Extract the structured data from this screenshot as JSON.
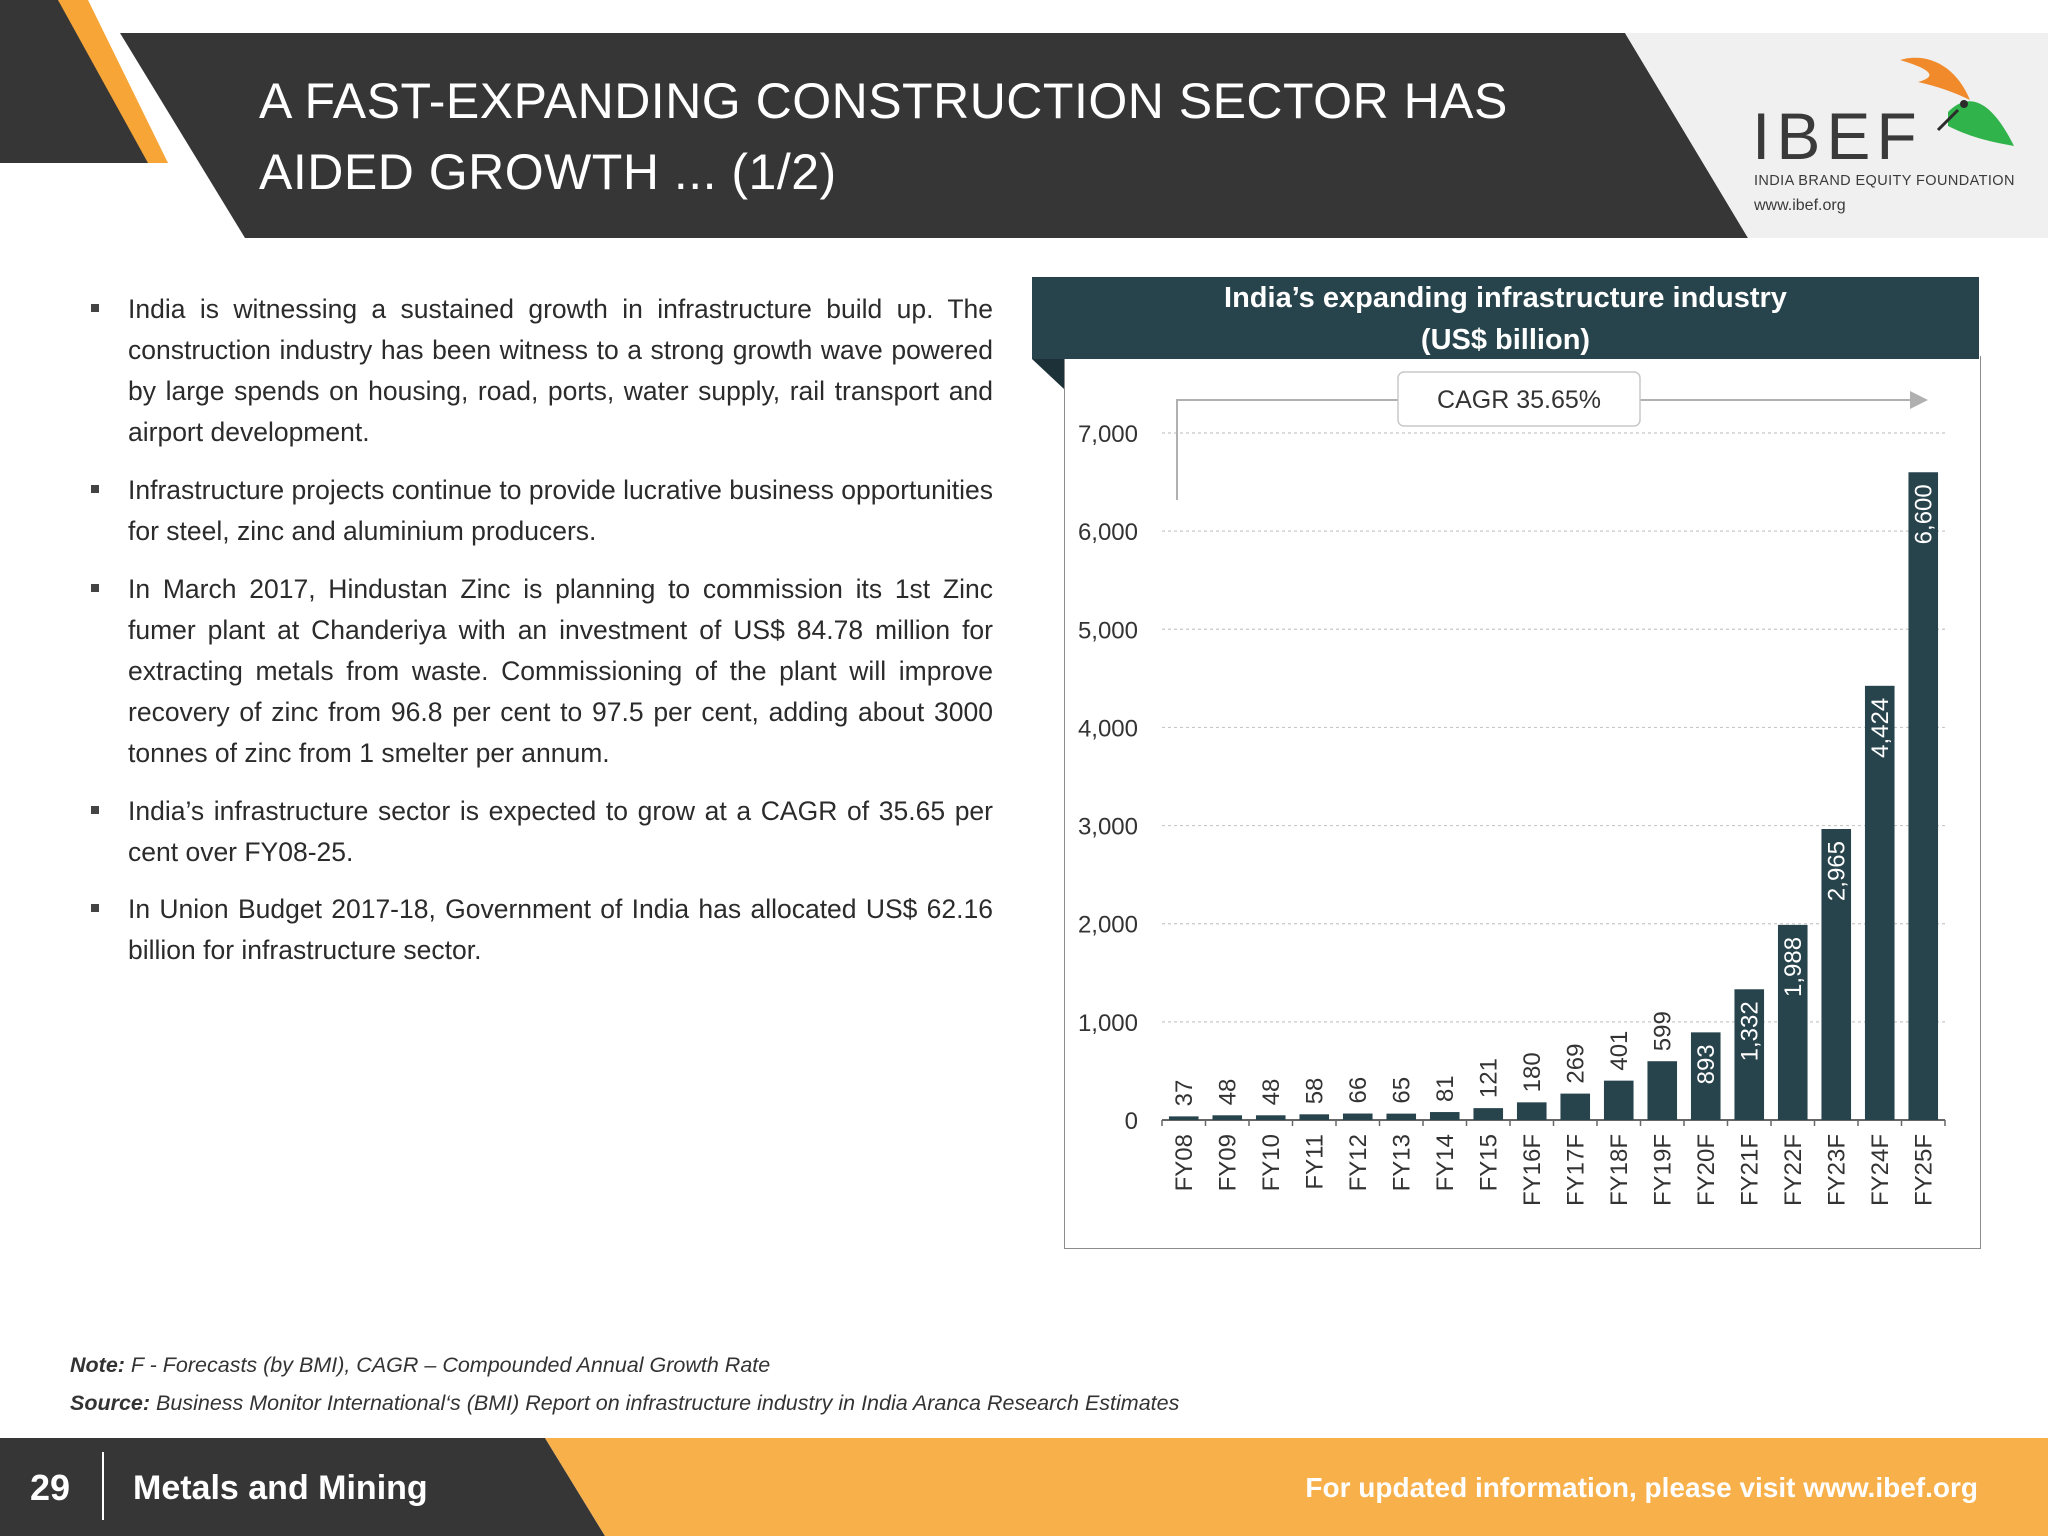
{
  "header": {
    "title_line1": "A FAST-EXPANDING CONSTRUCTION SECTOR HAS",
    "title_line2": "AIDED GROWTH ... (1/2)",
    "logo_text": "IBEF",
    "logo_subtitle": "INDIA BRAND EQUITY FOUNDATION",
    "logo_url": "www.ibef.org",
    "logo_icon": "bird-icon",
    "colors": {
      "dark": "#363636",
      "accent": "#f7a536",
      "logo_panel": "#f0f0f0"
    }
  },
  "bullets": [
    "India is witnessing a sustained growth in infrastructure build up. The construction industry has been witness to a strong growth wave powered by large spends on housing, road, ports, water supply, rail transport and airport development.",
    "Infrastructure projects continue to provide lucrative business opportunities for steel, zinc and aluminium producers.",
    "In March 2017, Hindustan Zinc is planning to commission its 1st Zinc fumer plant at Chanderiya with an investment of US$ 84.78 million for extracting metals from waste. Commissioning of the plant will improve recovery of zinc from 96.8 per cent to 97.5 per cent, adding about 3000 tonnes of zinc from 1 smelter per annum.",
    "India’s infrastructure sector is expected to grow at a CAGR of 35.65 per cent over FY08-25.",
    "In Union Budget 2017-18, Government of India has allocated US$ 62.16 billion for infrastructure sector."
  ],
  "chart_data": {
    "type": "bar",
    "title_line1": "India’s expanding infrastructure industry",
    "title_line2": "(US$ billion)",
    "annotation": "CAGR 35.65%",
    "categories": [
      "FY08",
      "FY09",
      "FY10",
      "FY11",
      "FY12",
      "FY13",
      "FY14",
      "FY15",
      "FY16F",
      "FY17F",
      "FY18F",
      "FY19F",
      "FY20F",
      "FY21F",
      "FY22F",
      "FY23F",
      "FY24F",
      "FY25F"
    ],
    "values": [
      37,
      48,
      48,
      58,
      66,
      65,
      81,
      121,
      180,
      269,
      401,
      599,
      893,
      1332,
      1988,
      2965,
      4424,
      6600
    ],
    "value_labels": [
      "37",
      "48",
      "48",
      "58",
      "66",
      "65",
      "81",
      "121",
      "180",
      "269",
      "401",
      "599",
      "893",
      "1,332",
      "1,988",
      "2,965",
      "4,424",
      "6,600"
    ],
    "yticks": [
      0,
      1000,
      2000,
      3000,
      4000,
      5000,
      6000,
      7000
    ],
    "ytick_labels": [
      "0",
      "1,000",
      "2,000",
      "3,000",
      "4,000",
      "5,000",
      "6,000",
      "7,000"
    ],
    "ylim": [
      0,
      7000
    ],
    "grid": true,
    "bar_color": "#27444c",
    "label_color_inside": "#ffffff",
    "label_color_outside": "#333333"
  },
  "notes": {
    "note_label": "Note:",
    "note_text": "F - Forecasts (by BMI), CAGR – Compounded Annual Growth Rate",
    "source_label": "Source:",
    "source_text": "Business Monitor International‘s (BMI) Report on infrastructure industry in India Aranca Research Estimates"
  },
  "footer": {
    "page_number": "29",
    "section": "Metals and Mining",
    "link_text": "For updated information, please visit www.ibef.org"
  }
}
